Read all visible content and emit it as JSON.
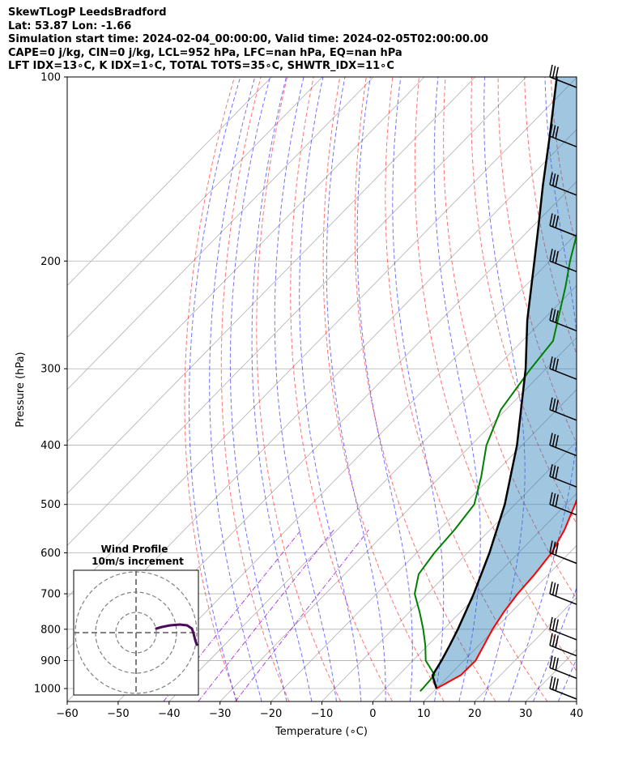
{
  "header": {
    "line1": "SkewTLogP LeedsBradford",
    "line2": "Lat: 53.87   Lon: -1.66",
    "line3": "Simulation start time: 2024-02-04_00:00:00, Valid time: 2024-02-05T02:00:00.00",
    "line4": "CAPE=0 j/kg, CIN=0 j/kg, LCL=952 hPa, LFC=nan hPa, EQ=nan hPa",
    "line5": "LFT IDX=13∘C, K IDX=1∘C, TOTAL TOTS=35∘C, SHWTR_IDX=11∘C"
  },
  "chart_data": {
    "type": "line",
    "subtype": "skew-t log-p diagram",
    "xlabel": "Temperature (∘C)",
    "ylabel": "Pressure (hPa)",
    "xlim": [
      -60,
      40
    ],
    "ylim": [
      1050,
      100
    ],
    "y_scale": "log",
    "grid": true,
    "x_ticks": [
      -60,
      -50,
      -40,
      -30,
      -20,
      -10,
      0,
      10,
      20,
      30,
      40
    ],
    "x_tick_labels": [
      "−60",
      "−50",
      "−40",
      "−30",
      "−20",
      "−10",
      "0",
      "10",
      "20",
      "30",
      "40"
    ],
    "y_ticks": [
      100,
      200,
      300,
      400,
      500,
      600,
      700,
      800,
      900,
      1000
    ],
    "y_tick_labels": [
      "100",
      "200",
      "300",
      "400",
      "500",
      "600",
      "700",
      "800",
      "900",
      "1000"
    ],
    "series": [
      {
        "role": "temperature",
        "color": "#ff0000",
        "points": [
          [
            1000,
            10
          ],
          [
            950,
            12.2
          ],
          [
            900,
            12.3
          ],
          [
            850,
            11
          ],
          [
            800,
            9.6
          ],
          [
            750,
            8.5
          ],
          [
            700,
            7.7
          ],
          [
            650,
            7.3
          ],
          [
            600,
            6.5
          ],
          [
            550,
            4.6
          ],
          [
            500,
            1.8
          ],
          [
            450,
            -1.5
          ],
          [
            400,
            -5
          ],
          [
            350,
            -9
          ],
          [
            300,
            -13.5
          ],
          [
            250,
            -19
          ],
          [
            200,
            -26
          ],
          [
            175,
            -31
          ],
          [
            170,
            -32.5
          ],
          [
            160,
            -33.5
          ],
          [
            150,
            -33
          ],
          [
            140,
            -32
          ],
          [
            130,
            -30
          ],
          [
            120,
            -28
          ],
          [
            110,
            -28
          ],
          [
            100,
            -28
          ]
        ]
      },
      {
        "role": "dewpoint",
        "color": "#008000",
        "points": [
          [
            1010,
            7.3
          ],
          [
            1000,
            7.3
          ],
          [
            950,
            7
          ],
          [
            900,
            2.5
          ],
          [
            850,
            -0.5
          ],
          [
            800,
            -4
          ],
          [
            750,
            -8
          ],
          [
            700,
            -12.5
          ],
          [
            650,
            -15.5
          ],
          [
            600,
            -16.5
          ],
          [
            550,
            -17
          ],
          [
            500,
            -18
          ],
          [
            450,
            -22
          ],
          [
            400,
            -27
          ],
          [
            350,
            -31
          ],
          [
            300,
            -33
          ],
          [
            270,
            -34
          ],
          [
            250,
            -37
          ],
          [
            220,
            -42
          ],
          [
            200,
            -46
          ],
          [
            180,
            -50
          ],
          [
            170,
            -51
          ],
          [
            160,
            -52
          ],
          [
            150,
            -52
          ],
          [
            140,
            -52
          ],
          [
            130,
            -51
          ],
          [
            120,
            -50
          ],
          [
            110,
            -50
          ],
          [
            100,
            -49
          ]
        ]
      },
      {
        "role": "parcel",
        "color": "#000000",
        "points": [
          [
            1000,
            10
          ],
          [
            952,
            6.7
          ],
          [
            900,
            5.6
          ],
          [
            850,
            4.3
          ],
          [
            800,
            2.8
          ],
          [
            700,
            -0.9
          ],
          [
            600,
            -5.7
          ],
          [
            500,
            -12
          ],
          [
            400,
            -21
          ],
          [
            300,
            -34
          ],
          [
            250,
            -43
          ],
          [
            200,
            -53
          ],
          [
            175,
            -59
          ],
          [
            150,
            -66
          ],
          [
            125,
            -74
          ],
          [
            100,
            -84
          ]
        ]
      }
    ],
    "cape_shading_color": "#1f77b4",
    "dry_adiabat_color": "#ff0000",
    "moist_adiabat_color": "#0000ff",
    "mixing_ratio_color": "#9400d3",
    "wind_barbs": {
      "color": "#000000",
      "levels": [
        {
          "p": 1000,
          "count": 3
        },
        {
          "p": 925,
          "count": 3
        },
        {
          "p": 850,
          "count": 3
        },
        {
          "p": 800,
          "count": 3
        },
        {
          "p": 700,
          "count": 3
        },
        {
          "p": 600,
          "count": 3
        },
        {
          "p": 500,
          "count": 3
        },
        {
          "p": 450,
          "count": 3
        },
        {
          "p": 400,
          "count": 3
        },
        {
          "p": 350,
          "count": 3
        },
        {
          "p": 300,
          "count": 3
        },
        {
          "p": 250,
          "count": 3
        },
        {
          "p": 200,
          "count": 3
        },
        {
          "p": 175,
          "count": 3
        },
        {
          "p": 150,
          "count": 3
        },
        {
          "p": 125,
          "count": 3
        },
        {
          "p": 100,
          "count": 3
        }
      ]
    },
    "hodograph": {
      "title_line1": "Wind Profile",
      "title_line2": "10m/s increment",
      "ring_color": "#808080",
      "trace_color": "#4b0b5a"
    }
  }
}
